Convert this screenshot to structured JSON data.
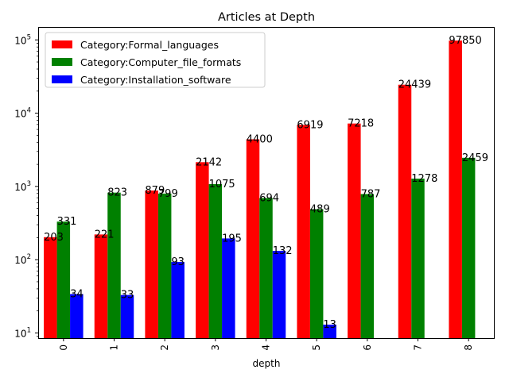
{
  "chart_data": {
    "type": "bar",
    "title": "Articles at Depth",
    "xlabel": "depth",
    "ylabel": "",
    "yscale": "log",
    "ylim": [
      8.5,
      150000
    ],
    "yticks": [
      {
        "value": 10,
        "base": "10",
        "exp": "1"
      },
      {
        "value": 100,
        "base": "10",
        "exp": "2"
      },
      {
        "value": 1000,
        "base": "10",
        "exp": "3"
      },
      {
        "value": 10000,
        "base": "10",
        "exp": "4"
      },
      {
        "value": 100000,
        "base": "10",
        "exp": "5"
      }
    ],
    "categories": [
      "0",
      "1",
      "2",
      "3",
      "4",
      "5",
      "6",
      "7",
      "8"
    ],
    "series": [
      {
        "name": "Category:Formal_languages",
        "color": "#ff0000",
        "values": [
          203,
          221,
          879,
          2142,
          4400,
          6919,
          7218,
          24439,
          97850
        ]
      },
      {
        "name": "Category:Computer_file_formats",
        "color": "#008000",
        "values": [
          331,
          823,
          799,
          1075,
          694,
          489,
          787,
          1278,
          2459
        ]
      },
      {
        "name": "Category:Installation_software",
        "color": "#0000ff",
        "values": [
          34,
          33,
          93,
          195,
          132,
          13,
          null,
          null,
          null
        ]
      }
    ],
    "legend_position": "top-left",
    "grid": false
  }
}
